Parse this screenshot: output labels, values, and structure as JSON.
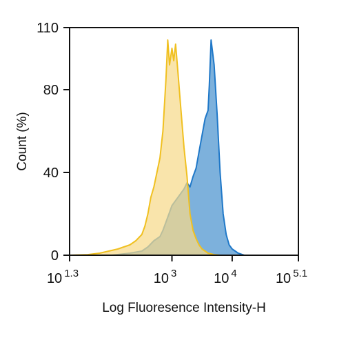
{
  "chart_data": {
    "type": "area",
    "title": "",
    "xlabel": "Log Fluoresence Intensity-H",
    "ylabel": "Count  (%)",
    "x_scale": "log10",
    "xlim": [
      1.3,
      5.1
    ],
    "ylim": [
      0,
      110
    ],
    "grid": false,
    "legend": "none",
    "x_ticks": [
      {
        "base": "10",
        "exp": "1.3",
        "value": 1.3
      },
      {
        "base": "10",
        "exp": "3",
        "value": 3
      },
      {
        "base": "10",
        "exp": "4",
        "value": 4
      },
      {
        "base": "10",
        "exp": "5.1",
        "value": 5.1
      }
    ],
    "y_ticks": [
      "0",
      "40",
      "80",
      "110"
    ],
    "y_tick_values": [
      0,
      40,
      80,
      110
    ],
    "series": [
      {
        "color": "#f0c020",
        "fill": "#f7d98a",
        "x": [
          1.3,
          1.6,
          1.8,
          1.95,
          2.1,
          2.2,
          2.3,
          2.4,
          2.5,
          2.55,
          2.6,
          2.65,
          2.7,
          2.75,
          2.8,
          2.85,
          2.9,
          2.93,
          2.96,
          3.0,
          3.03,
          3.06,
          3.1,
          3.15,
          3.2,
          3.25,
          3.3,
          3.35,
          3.4,
          3.45,
          3.5,
          3.55,
          3.6,
          3.7,
          3.8
        ],
        "values": [
          0,
          0.3,
          1,
          2,
          3,
          4,
          5,
          7,
          10,
          14,
          20,
          28,
          33,
          40,
          47,
          60,
          85,
          104,
          92,
          100,
          94,
          102,
          88,
          70,
          52,
          38,
          20,
          12,
          8,
          5,
          3,
          2,
          1,
          0.3,
          0
        ]
      },
      {
        "color": "#1f78c8",
        "fill": "#6fa8d8",
        "x": [
          2.0,
          2.3,
          2.5,
          2.6,
          2.7,
          2.8,
          2.85,
          2.9,
          2.95,
          3.0,
          3.05,
          3.1,
          3.15,
          3.2,
          3.25,
          3.3,
          3.35,
          3.4,
          3.45,
          3.5,
          3.55,
          3.6,
          3.62,
          3.65,
          3.7,
          3.75,
          3.8,
          3.85,
          3.9,
          3.95,
          4.0,
          4.05,
          4.1,
          4.15,
          4.2
        ],
        "values": [
          0,
          1,
          2,
          4,
          7,
          9,
          12,
          16,
          20,
          24,
          26,
          28,
          30,
          32,
          35,
          33,
          38,
          42,
          50,
          58,
          66,
          70,
          82,
          104,
          92,
          68,
          40,
          20,
          10,
          5,
          3,
          2,
          1,
          0.5,
          0
        ]
      }
    ]
  }
}
